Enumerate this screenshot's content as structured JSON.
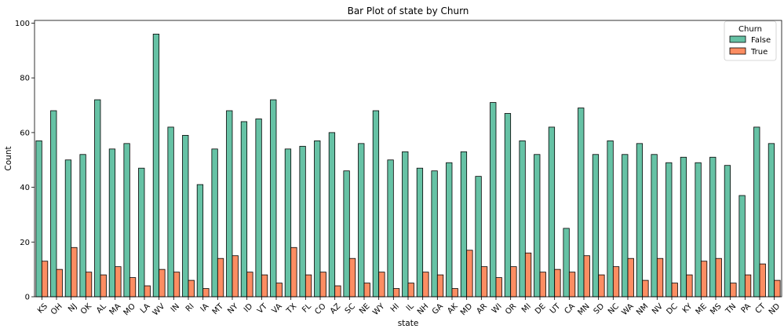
{
  "chart_data": {
    "type": "bar",
    "title": "Bar Plot of state by Churn",
    "xlabel": "state",
    "ylabel": "Count",
    "ylim": [
      0,
      101
    ],
    "yticks": [
      0,
      20,
      40,
      60,
      80,
      100
    ],
    "grid": false,
    "legend": {
      "title": "Churn",
      "placement": "top-right"
    },
    "categories": [
      "KS",
      "OH",
      "NJ",
      "OK",
      "AL",
      "MA",
      "MO",
      "LA",
      "WV",
      "IN",
      "RI",
      "IA",
      "MT",
      "NY",
      "ID",
      "VT",
      "VA",
      "TX",
      "FL",
      "CO",
      "AZ",
      "SC",
      "NE",
      "WY",
      "HI",
      "IL",
      "NH",
      "GA",
      "AK",
      "MD",
      "AR",
      "WI",
      "OR",
      "MI",
      "DE",
      "UT",
      "CA",
      "MN",
      "SD",
      "NC",
      "WA",
      "NM",
      "NV",
      "DC",
      "KY",
      "ME",
      "MS",
      "TN",
      "PA",
      "CT",
      "ND"
    ],
    "series": [
      {
        "name": "False",
        "color": "#66c2a5",
        "values": [
          57,
          68,
          50,
          52,
          72,
          54,
          56,
          47,
          96,
          62,
          59,
          41,
          54,
          68,
          64,
          65,
          72,
          54,
          55,
          57,
          60,
          46,
          56,
          68,
          50,
          53,
          47,
          46,
          49,
          53,
          44,
          71,
          67,
          57,
          52,
          62,
          25,
          69,
          52,
          57,
          52,
          56,
          52,
          49,
          51,
          49,
          51,
          48,
          37,
          62,
          56
        ]
      },
      {
        "name": "True",
        "color": "#fc8d62",
        "values": [
          13,
          10,
          18,
          9,
          8,
          11,
          7,
          4,
          10,
          9,
          6,
          3,
          14,
          15,
          9,
          8,
          5,
          18,
          8,
          9,
          4,
          14,
          5,
          9,
          3,
          5,
          9,
          8,
          3,
          17,
          11,
          7,
          11,
          16,
          9,
          10,
          9,
          15,
          8,
          11,
          14,
          6,
          14,
          5,
          8,
          13,
          14,
          5,
          8,
          12,
          6
        ]
      }
    ]
  }
}
